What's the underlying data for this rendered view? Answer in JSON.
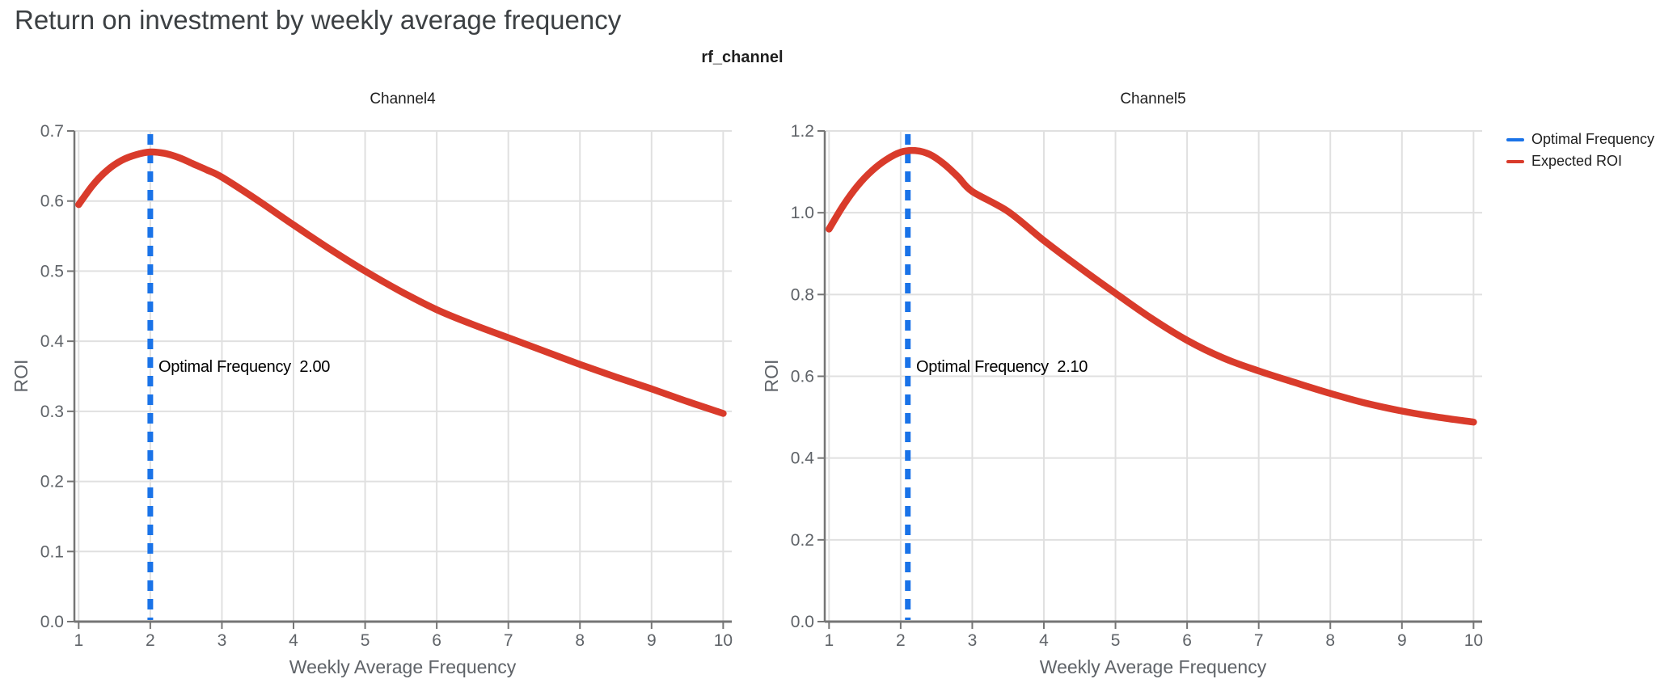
{
  "page_title": "Return on investment by weekly average frequency",
  "figure_title": "rf_channel",
  "colors": {
    "expected_roi_red": "#d93b2b",
    "optimal_frequency_blue": "#1a73e8",
    "gridline": "#e0e0e0",
    "axis_line": "#757575",
    "tick_text": "#5f6368",
    "title_text": "#3c4043"
  },
  "legend": {
    "items": [
      {
        "label": "Optimal Frequency",
        "color": "#1a73e8"
      },
      {
        "label": "Expected ROI",
        "color": "#d93b2b"
      }
    ]
  },
  "chart_data": [
    {
      "type": "line",
      "title": "Channel4",
      "xlabel": "Weekly Average Frequency",
      "ylabel": "ROI",
      "xlim": [
        0.94,
        10.12
      ],
      "ylim": [
        0,
        0.7
      ],
      "xtick_values": [
        1,
        2,
        3,
        4,
        5,
        6,
        7,
        8,
        9,
        10
      ],
      "xtick_labels": [
        "1",
        "2",
        "3",
        "4",
        "5",
        "6",
        "7",
        "8",
        "9",
        "10"
      ],
      "ytick_values": [
        0,
        0.1,
        0.2,
        0.3,
        0.4,
        0.5,
        0.6,
        0.7
      ],
      "ytick_labels": [
        "0.0",
        "0.1",
        "0.2",
        "0.3",
        "0.4",
        "0.5",
        "0.6",
        "0.7"
      ],
      "grid": true,
      "optimal_frequency": 2.0,
      "annotation": "Optimal Frequency  2.00",
      "vline": {
        "name": "Optimal Frequency",
        "x": 2.0
      },
      "series": [
        {
          "name": "Expected ROI",
          "x": [
            1,
            1.2,
            1.4,
            1.6,
            1.8,
            2,
            2.2,
            2.4,
            2.6,
            2.8,
            3,
            3.5,
            4,
            4.5,
            5,
            5.5,
            6,
            6.5,
            7,
            7.5,
            8,
            8.5,
            9,
            9.5,
            10
          ],
          "y": [
            0.595,
            0.623,
            0.644,
            0.658,
            0.666,
            0.67,
            0.668,
            0.662,
            0.653,
            0.644,
            0.634,
            0.601,
            0.566,
            0.532,
            0.5,
            0.471,
            0.445,
            0.424,
            0.405,
            0.386,
            0.367,
            0.349,
            0.332,
            0.314,
            0.297
          ]
        }
      ]
    },
    {
      "type": "line",
      "title": "Channel5",
      "xlabel": "Weekly Average Frequency",
      "ylabel": "ROI",
      "xlim": [
        0.94,
        10.12
      ],
      "ylim": [
        0,
        1.2
      ],
      "xtick_values": [
        1,
        2,
        3,
        4,
        5,
        6,
        7,
        8,
        9,
        10
      ],
      "xtick_labels": [
        "1",
        "2",
        "3",
        "4",
        "5",
        "6",
        "7",
        "8",
        "9",
        "10"
      ],
      "ytick_values": [
        0,
        0.2,
        0.4,
        0.6,
        0.8,
        1.0,
        1.2
      ],
      "ytick_labels": [
        "0.0",
        "0.2",
        "0.4",
        "0.6",
        "0.8",
        "1.0",
        "1.2"
      ],
      "grid": true,
      "optimal_frequency": 2.1,
      "annotation": "Optimal Frequency  2.10",
      "vline": {
        "name": "Optimal Frequency",
        "x": 2.1
      },
      "series": [
        {
          "name": "Expected ROI",
          "x": [
            1,
            1.2,
            1.4,
            1.6,
            1.8,
            2,
            2.2,
            2.4,
            2.6,
            2.8,
            3,
            3.5,
            4,
            4.5,
            5,
            5.5,
            6,
            6.5,
            7,
            7.5,
            8,
            8.5,
            9,
            9.5,
            10
          ],
          "y": [
            0.96,
            1.018,
            1.066,
            1.103,
            1.13,
            1.148,
            1.152,
            1.143,
            1.12,
            1.088,
            1.052,
            1.003,
            0.932,
            0.866,
            0.803,
            0.742,
            0.688,
            0.645,
            0.613,
            0.585,
            0.558,
            0.534,
            0.515,
            0.5,
            0.488
          ]
        }
      ]
    }
  ]
}
